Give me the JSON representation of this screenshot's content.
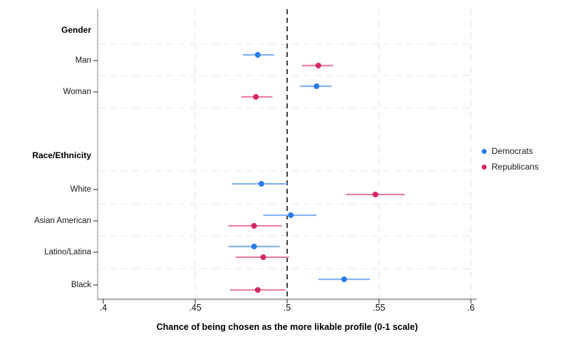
{
  "figure": {
    "background": "#ffffff",
    "axis_color": "#b3b3b3",
    "tick_color": "#333333",
    "grid_color": "#ededed",
    "reference_line_color": "#111111"
  },
  "chart_data": {
    "type": "scatter",
    "subtype": "dot-and-whisker coefficient plot, horizontal",
    "title": "",
    "xlabel": "Chance of being chosen as the more likable profile (0-1 scale)",
    "ylabel": "",
    "xlim": [
      0.4,
      0.6
    ],
    "xticks": [
      ".4",
      ".45",
      ".5",
      ".55",
      ".6"
    ],
    "xtick_values": [
      0.4,
      0.45,
      0.5,
      0.55,
      0.6
    ],
    "reference_line_x": 0.5,
    "grid": true,
    "legend_position": "right-middle",
    "series_meta": [
      {
        "id": "democrats",
        "name": "Democrats",
        "color": "#2b7ceb",
        "ci_color": "#85b6f2"
      },
      {
        "id": "republicans",
        "name": "Republicans",
        "color": "#d4286a",
        "ci_color": "#e9849f"
      }
    ],
    "rows": [
      {
        "label": "Gender",
        "heading": true
      },
      {
        "label": "Man",
        "heading": false,
        "democrats": {
          "est": 0.484,
          "lo": 0.476,
          "hi": 0.493
        },
        "republicans": {
          "est": 0.517,
          "lo": 0.508,
          "hi": 0.525
        }
      },
      {
        "label": "Woman",
        "heading": false,
        "democrats": {
          "est": 0.516,
          "lo": 0.507,
          "hi": 0.524
        },
        "republicans": {
          "est": 0.483,
          "lo": 0.475,
          "hi": 0.492
        }
      },
      {
        "label": "Race/Ethnicity",
        "heading": true
      },
      {
        "label": "White",
        "heading": false,
        "democrats": {
          "est": 0.486,
          "lo": 0.47,
          "hi": 0.5
        },
        "republicans": {
          "est": 0.548,
          "lo": 0.532,
          "hi": 0.564
        }
      },
      {
        "label": "Asian American",
        "heading": false,
        "democrats": {
          "est": 0.502,
          "lo": 0.487,
          "hi": 0.516
        },
        "republicans": {
          "est": 0.482,
          "lo": 0.468,
          "hi": 0.497
        }
      },
      {
        "label": "Latino/Latina",
        "heading": false,
        "democrats": {
          "est": 0.482,
          "lo": 0.468,
          "hi": 0.496
        },
        "republicans": {
          "est": 0.487,
          "lo": 0.472,
          "hi": 0.501
        }
      },
      {
        "label": "Black",
        "heading": false,
        "democrats": {
          "est": 0.531,
          "lo": 0.517,
          "hi": 0.545
        },
        "republicans": {
          "est": 0.484,
          "lo": 0.469,
          "hi": 0.499
        }
      }
    ]
  }
}
